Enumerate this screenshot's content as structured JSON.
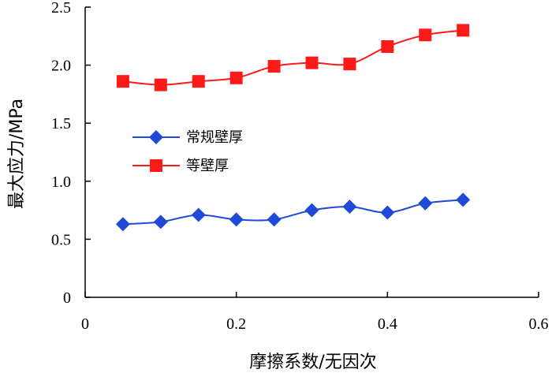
{
  "chart_data": {
    "type": "line",
    "title": "",
    "xlabel": "摩擦系数/无因次",
    "ylabel": "最大应力/MPa",
    "xlim": [
      0,
      0.6
    ],
    "ylim": [
      0,
      2.5
    ],
    "x_ticks": [
      "0",
      "0.2",
      "0.4",
      "0.6"
    ],
    "y_ticks": [
      "0",
      "0.5",
      "1.0",
      "1.5",
      "2.0",
      "2.5"
    ],
    "x": [
      0.05,
      0.1,
      0.15,
      0.2,
      0.25,
      0.3,
      0.35,
      0.4,
      0.45,
      0.5
    ],
    "series": [
      {
        "name": "常规壁厚",
        "color": "#1f49d6",
        "marker": "diamond",
        "values": [
          0.63,
          0.65,
          0.71,
          0.67,
          0.67,
          0.75,
          0.78,
          0.73,
          0.81,
          0.84
        ]
      },
      {
        "name": "等壁厚",
        "color": "#ff1a1a",
        "marker": "square",
        "values": [
          1.86,
          1.83,
          1.86,
          1.89,
          1.99,
          2.02,
          2.01,
          2.16,
          2.26,
          2.3
        ]
      }
    ],
    "grid": false,
    "legend_position": "center-left"
  }
}
